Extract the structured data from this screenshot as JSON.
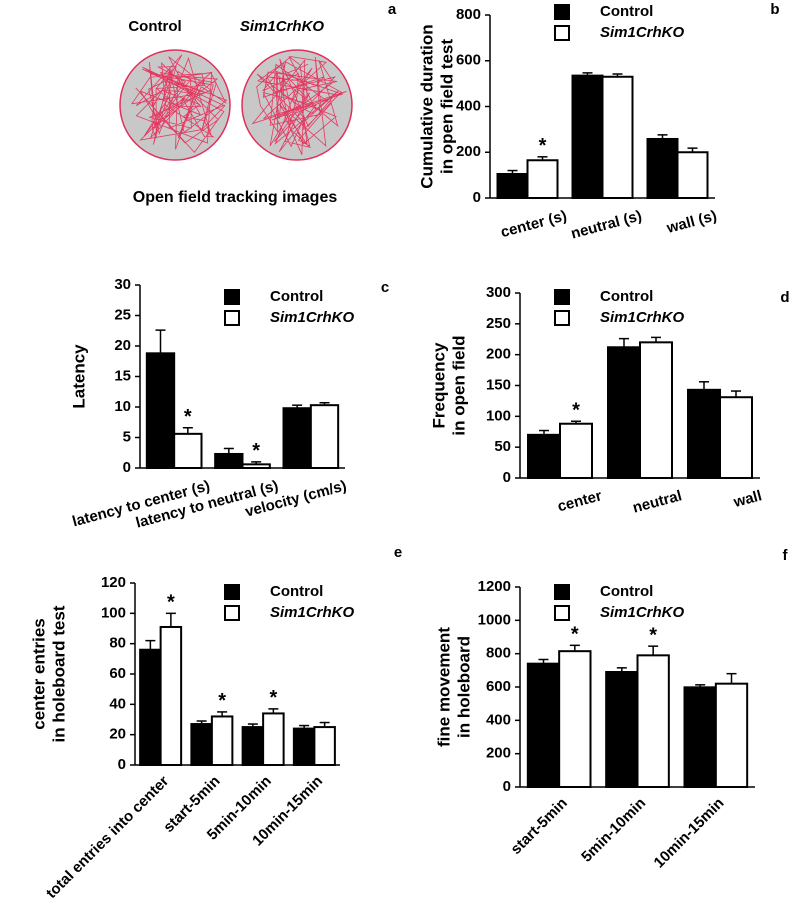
{
  "tracking_panel": {
    "panel": "a",
    "labels": [
      "Control",
      "Sim1CrhKO"
    ],
    "caption": "Open field tracking images"
  },
  "chart_data": [
    {
      "type": "bar",
      "panel": "b",
      "ylabel": [
        "Cumulative duration",
        "in open field test"
      ],
      "categories": [
        "center (s)",
        "neutral (s)",
        "wall (s)"
      ],
      "series": [
        {
          "name": "Control",
          "color": "#000000",
          "values": [
            105,
            535,
            258
          ],
          "errors": [
            15,
            12,
            18
          ]
        },
        {
          "name": "Sim1CrhKO",
          "color": "#ffffff",
          "values": [
            165,
            530,
            200
          ],
          "errors": [
            15,
            12,
            18
          ],
          "marks": [
            "*",
            null,
            null
          ]
        }
      ],
      "ylim": [
        0,
        800
      ],
      "yticks": [
        0,
        200,
        400,
        600,
        800
      ]
    },
    {
      "type": "bar",
      "panel": "c",
      "ylabel": [
        "Latency"
      ],
      "categories": [
        "latency to center (s)",
        "latency to neutral (s)",
        "velocity (cm/s)"
      ],
      "series": [
        {
          "name": "Control",
          "color": "#000000",
          "values": [
            18.8,
            2.3,
            9.8
          ],
          "errors": [
            3.8,
            0.9,
            0.5
          ]
        },
        {
          "name": "Sim1CrhKO",
          "color": "#ffffff",
          "values": [
            5.6,
            0.6,
            10.3
          ],
          "errors": [
            1.0,
            0.4,
            0.4
          ],
          "marks": [
            "*",
            "*",
            null
          ]
        }
      ],
      "ylim": [
        0,
        30
      ],
      "yticks": [
        0,
        5,
        10,
        15,
        20,
        25,
        30
      ]
    },
    {
      "type": "bar",
      "panel": "d",
      "ylabel": [
        "Frequency",
        "in open field"
      ],
      "categories": [
        "center",
        "neutral",
        "wall"
      ],
      "series": [
        {
          "name": "Control",
          "color": "#000000",
          "values": [
            70,
            212,
            143
          ],
          "errors": [
            7,
            14,
            13
          ]
        },
        {
          "name": "Sim1CrhKO",
          "color": "#ffffff",
          "values": [
            88,
            220,
            131
          ],
          "errors": [
            4,
            8,
            10
          ],
          "marks": [
            "*",
            null,
            null
          ]
        }
      ],
      "ylim": [
        0,
        300
      ],
      "yticks": [
        0,
        50,
        100,
        150,
        200,
        250,
        300
      ]
    },
    {
      "type": "bar",
      "panel": "e",
      "ylabel": [
        "center entries",
        "in holeboard test"
      ],
      "categories": [
        "total entries into center",
        "start-5min",
        "5min-10min",
        "10min-15min"
      ],
      "series": [
        {
          "name": "Control",
          "color": "#000000",
          "values": [
            76,
            27,
            25,
            24
          ],
          "errors": [
            6,
            2,
            2,
            2
          ]
        },
        {
          "name": "Sim1CrhKO",
          "color": "#ffffff",
          "values": [
            91,
            32,
            34,
            25
          ],
          "errors": [
            9,
            3,
            3,
            3
          ],
          "marks": [
            "*",
            "*",
            "*",
            null
          ]
        }
      ],
      "ylim": [
        0,
        120
      ],
      "yticks": [
        0,
        20,
        40,
        60,
        80,
        100,
        120
      ]
    },
    {
      "type": "bar",
      "panel": "f",
      "ylabel": [
        "fine movement",
        "in holeboard"
      ],
      "categories": [
        "start-5min",
        "5min-10min",
        "10min-15min"
      ],
      "series": [
        {
          "name": "Control",
          "color": "#000000",
          "values": [
            740,
            690,
            598
          ],
          "errors": [
            25,
            25,
            15
          ]
        },
        {
          "name": "Sim1CrhKO",
          "color": "#ffffff",
          "values": [
            815,
            790,
            620
          ],
          "errors": [
            35,
            55,
            60
          ],
          "marks": [
            "*",
            "*",
            null
          ]
        }
      ],
      "ylim": [
        0,
        1200
      ],
      "yticks": [
        0,
        200,
        400,
        600,
        800,
        1000,
        1200
      ]
    }
  ]
}
